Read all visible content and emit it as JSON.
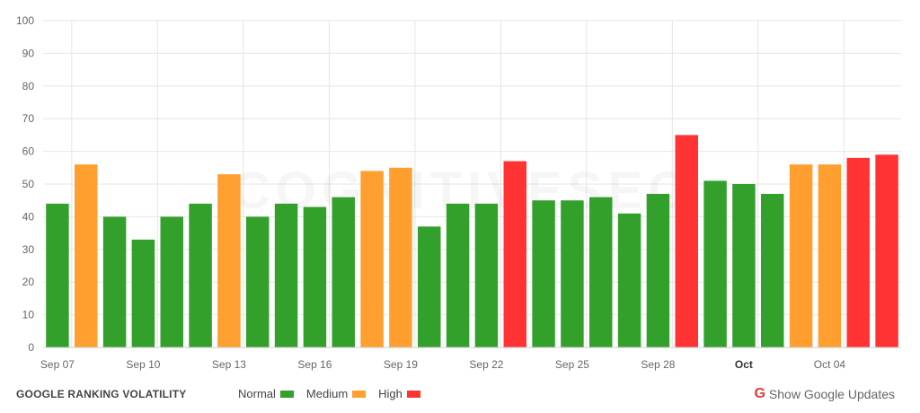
{
  "chart_data": {
    "type": "bar",
    "categories": [
      "Sep 07",
      "Sep 08",
      "Sep 09",
      "Sep 10",
      "Sep 11",
      "Sep 12",
      "Sep 13",
      "Sep 14",
      "Sep 15",
      "Sep 16",
      "Sep 17",
      "Sep 18",
      "Sep 19",
      "Sep 20",
      "Sep 21",
      "Sep 22",
      "Sep 23",
      "Sep 24",
      "Sep 25",
      "Sep 26",
      "Sep 27",
      "Sep 28",
      "Sep 29",
      "Sep 30",
      "Oct 01",
      "Oct 02",
      "Oct 03",
      "Oct 04",
      "Oct 05",
      "Oct 06"
    ],
    "values": [
      44,
      56,
      40,
      33,
      40,
      44,
      53,
      40,
      44,
      43,
      46,
      54,
      55,
      37,
      44,
      44,
      57,
      45,
      45,
      46,
      41,
      47,
      65,
      51,
      50,
      47,
      56,
      56,
      58,
      59
    ],
    "levels": [
      "normal",
      "medium",
      "normal",
      "normal",
      "normal",
      "normal",
      "medium",
      "normal",
      "normal",
      "normal",
      "normal",
      "medium",
      "medium",
      "normal",
      "normal",
      "normal",
      "high",
      "normal",
      "normal",
      "normal",
      "normal",
      "normal",
      "high",
      "normal",
      "normal",
      "normal",
      "medium",
      "medium",
      "high",
      "high"
    ],
    "x_tick_labels": [
      {
        "index": 0,
        "label": "Sep 07",
        "bold": false
      },
      {
        "index": 3,
        "label": "Sep 10",
        "bold": false
      },
      {
        "index": 6,
        "label": "Sep 13",
        "bold": false
      },
      {
        "index": 9,
        "label": "Sep 16",
        "bold": false
      },
      {
        "index": 12,
        "label": "Sep 19",
        "bold": false
      },
      {
        "index": 15,
        "label": "Sep 22",
        "bold": false
      },
      {
        "index": 18,
        "label": "Sep 25",
        "bold": false
      },
      {
        "index": 21,
        "label": "Sep 28",
        "bold": false
      },
      {
        "index": 24,
        "label": "Oct",
        "bold": true
      },
      {
        "index": 27,
        "label": "Oct 04",
        "bold": false
      }
    ],
    "y_ticks": [
      0,
      10,
      20,
      30,
      40,
      50,
      60,
      70,
      80,
      90,
      100
    ],
    "ylim": [
      0,
      100
    ],
    "grid": true,
    "title": "GOOGLE RANKING VOLATILITY",
    "xlabel": "",
    "ylabel": "",
    "colors": {
      "normal": "#33a02c",
      "medium": "#ff9f2f",
      "high": "#ff3333"
    },
    "legend": [
      {
        "key": "normal",
        "label": "Normal"
      },
      {
        "key": "medium",
        "label": "Medium"
      },
      {
        "key": "high",
        "label": "High"
      }
    ],
    "watermark": "COGNITIVESEO"
  },
  "footer": {
    "title": "GOOGLE RANKING VOLATILITY",
    "updates_icon": "G",
    "updates_label": "Show Google Updates"
  }
}
